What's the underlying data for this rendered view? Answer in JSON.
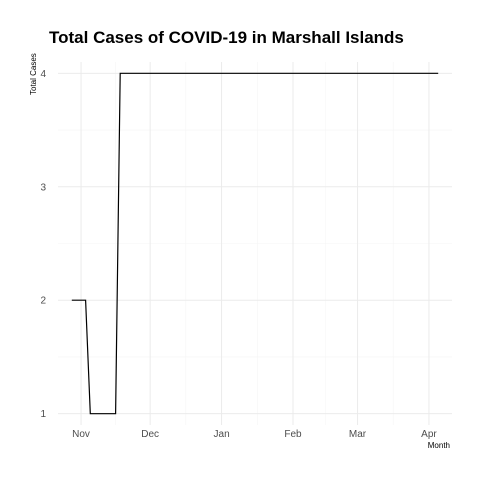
{
  "chart_data": {
    "type": "line",
    "title": "Total Cases of COVID-19 in Marshall Islands",
    "xlabel": "Month",
    "ylabel": "Total Cases",
    "x_ticks": [
      "Nov",
      "Dec",
      "Jan",
      "Feb",
      "Mar",
      "Apr"
    ],
    "y_ticks": [
      1,
      2,
      3,
      4
    ],
    "ylim": [
      0.9,
      4.1
    ],
    "xlim_days": [
      -10,
      161
    ],
    "x_tick_days": [
      0,
      30,
      61,
      92,
      120,
      151
    ],
    "series": [
      {
        "name": "Total Cases",
        "color": "#000000",
        "step": true,
        "points": [
          {
            "day": -4,
            "value": 2
          },
          {
            "day": 2,
            "value": 2
          },
          {
            "day": 4,
            "value": 1
          },
          {
            "day": 15,
            "value": 1
          },
          {
            "day": 17,
            "value": 4
          },
          {
            "day": 155,
            "value": 4
          }
        ]
      }
    ],
    "grid": true
  }
}
